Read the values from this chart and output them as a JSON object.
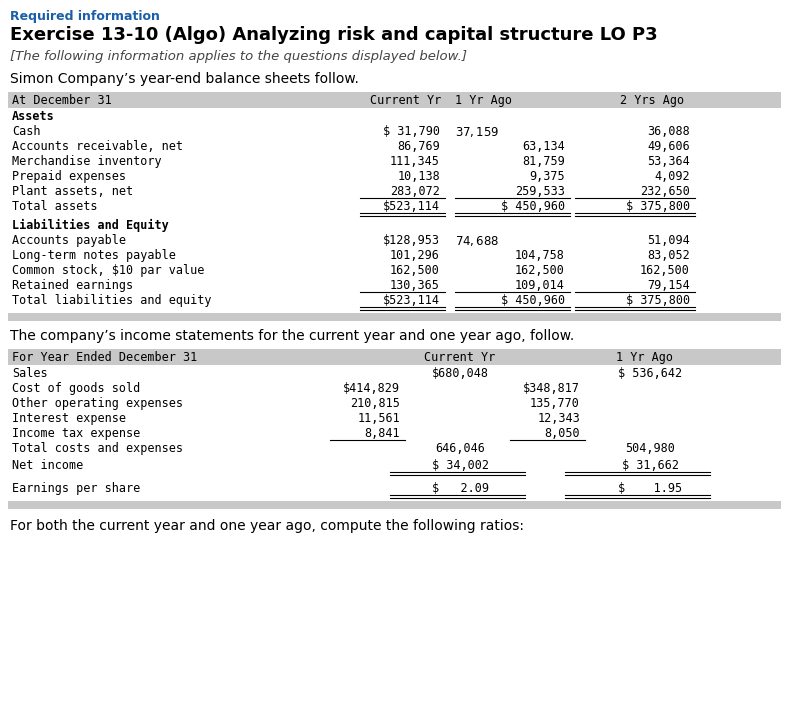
{
  "required_info": "Required information",
  "title": "Exercise 13-10 (Algo) Analyzing risk and capital structure LO P3",
  "subtitle": "[The following information applies to the questions displayed below.]",
  "intro1": "Simon Company’s year-end balance sheets follow.",
  "balance_sheet_header": [
    "At December 31",
    "Current Yr",
    "1 Yr Ago",
    "2 Yrs Ago"
  ],
  "bs_section1_header": "Assets",
  "bs_rows_assets": [
    [
      "Cash",
      "$ 31,790",
      "$ 37,159 $",
      "36,088"
    ],
    [
      "Accounts receivable, net",
      "86,769",
      "63,134",
      "49,606"
    ],
    [
      "Merchandise inventory",
      "111,345",
      "81,759",
      "53,364"
    ],
    [
      "Prepaid expenses",
      "10,138",
      "9,375",
      "4,092"
    ],
    [
      "Plant assets, net",
      "283,072",
      "259,533",
      "232,650"
    ]
  ],
  "bs_total_assets": [
    "Total assets",
    "$523,114",
    "$ 450,960",
    "$ 375,800"
  ],
  "bs_section2_header": "Liabilities and Equity",
  "bs_rows_liab": [
    [
      "Accounts payable",
      "$128,953",
      "$ 74,688 $",
      "51,094"
    ],
    [
      "Long-term notes payable",
      "101,296",
      "104,758",
      "83,052"
    ],
    [
      "Common stock, $10 par value",
      "162,500",
      "162,500",
      "162,500"
    ],
    [
      "Retained earnings",
      "130,365",
      "109,014",
      "79,154"
    ]
  ],
  "bs_total_liab": [
    "Total liabilities and equity",
    "$523,114",
    "$ 450,960",
    "$ 375,800"
  ],
  "intro2": "The company’s income statements for the current year and one year ago, follow.",
  "income_header": [
    "For Year Ended December 31",
    "Current Yr",
    "1 Yr Ago"
  ],
  "is_sales": [
    "Sales",
    "$680,048",
    "$ 536,642"
  ],
  "is_rows": [
    [
      "Cost of goods sold",
      "$414,829",
      "$348,817"
    ],
    [
      "Other operating expenses",
      "210,815",
      "135,770"
    ],
    [
      "Interest expense",
      "11,561",
      "12,343"
    ],
    [
      "Income tax expense",
      "8,841",
      "8,050"
    ]
  ],
  "is_total": [
    "Total costs and expenses",
    "646,046",
    "504,980"
  ],
  "is_net_income": [
    "Net income",
    "$ 34,002",
    "$ 31,662"
  ],
  "is_eps": [
    "Earnings per share",
    "$   2.09",
    "$    1.95"
  ],
  "footer": "For both the current year and one year ago, compute the following ratios:",
  "header_bg": "#c8c8c8",
  "bg_color": "#ffffff",
  "required_color": "#1a5fa8",
  "mono_font": "DejaVu Sans Mono",
  "sans_font": "DejaVu Sans"
}
